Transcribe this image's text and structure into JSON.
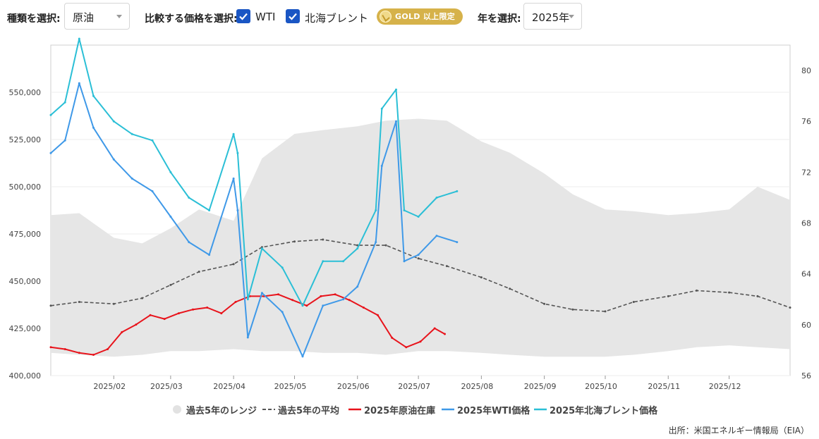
{
  "toolbar": {
    "type_label": "種類を選択:",
    "type_value": "原油",
    "compare_label": "比較する価格を選択:",
    "wti_label": "WTI",
    "wti_checked": true,
    "brent_label": "北海ブレント",
    "brent_checked": true,
    "gold_badge": "GOLD 以上限定",
    "gold_icon": "gold-coin-icon",
    "year_label": "年を選択:",
    "year_value": "2025年"
  },
  "chart_data": {
    "type": "line",
    "x_ticks": [
      "2025/02",
      "2025/03",
      "2025/04",
      "2025/05",
      "2025/06",
      "2025/07",
      "2025/08",
      "2025/09",
      "2025/10",
      "2025/11",
      "2025/12"
    ],
    "x_range": [
      "2025-01-01",
      "2025-12-31"
    ],
    "y_left": {
      "ticks": [
        400000,
        425000,
        450000,
        475000,
        500000,
        525000,
        550000
      ],
      "tick_labels": [
        "400,000",
        "425,000",
        "450,000",
        "475,000",
        "500,000",
        "525,000",
        "550,000"
      ],
      "range": [
        400000,
        575000
      ]
    },
    "y_right": {
      "ticks": [
        56,
        60,
        64,
        68,
        72,
        76,
        80
      ],
      "tick_labels": [
        "56",
        "60",
        "64",
        "68",
        "72",
        "76",
        "80"
      ],
      "range": [
        56,
        82
      ]
    },
    "gridlines": true,
    "legend_position": "bottom",
    "legend": [
      {
        "name": "過去5年のレンジ",
        "color": "#e2e2e2",
        "style": "dot"
      },
      {
        "name": "過去5年の平均",
        "color": "#555555",
        "style": "dashed"
      },
      {
        "name": "2025年原油在庫",
        "color": "#e8131b",
        "style": "line"
      },
      {
        "name": "2025年WTI価格",
        "color": "#3f99e8",
        "style": "line"
      },
      {
        "name": "2025年北海ブレント価格",
        "color": "#2bbfd6",
        "style": "line"
      }
    ],
    "range_band": {
      "name": "過去5年のレンジ",
      "axis": "left",
      "x": [
        "2025-01-01",
        "2025-01-15",
        "2025-02-01",
        "2025-02-15",
        "2025-03-01",
        "2025-03-15",
        "2025-04-01",
        "2025-04-15",
        "2025-05-01",
        "2025-05-15",
        "2025-06-01",
        "2025-06-15",
        "2025-07-01",
        "2025-07-15",
        "2025-08-01",
        "2025-08-15",
        "2025-09-01",
        "2025-09-15",
        "2025-10-01",
        "2025-10-15",
        "2025-11-01",
        "2025-11-15",
        "2025-12-01",
        "2025-12-15",
        "2025-12-31"
      ],
      "low": [
        412000,
        411000,
        410000,
        411000,
        413000,
        413000,
        414000,
        413000,
        413000,
        412000,
        412000,
        411000,
        413000,
        413000,
        412000,
        411000,
        410000,
        410000,
        410000,
        411000,
        413000,
        415000,
        416000,
        415000,
        414000
      ],
      "high": [
        485000,
        486000,
        473000,
        470000,
        478000,
        488000,
        482000,
        515000,
        528000,
        530000,
        532000,
        535000,
        536000,
        535000,
        524000,
        518000,
        507000,
        496000,
        488000,
        487000,
        485000,
        486000,
        488000,
        500000,
        493000
      ]
    },
    "series": [
      {
        "name": "過去5年の平均",
        "axis": "left",
        "color": "#555555",
        "dash": true,
        "x": [
          "2025-01-01",
          "2025-01-15",
          "2025-02-01",
          "2025-02-15",
          "2025-03-01",
          "2025-03-15",
          "2025-04-01",
          "2025-04-15",
          "2025-05-01",
          "2025-05-15",
          "2025-06-01",
          "2025-06-15",
          "2025-07-01",
          "2025-07-15",
          "2025-08-01",
          "2025-08-15",
          "2025-09-01",
          "2025-09-15",
          "2025-10-01",
          "2025-10-15",
          "2025-11-01",
          "2025-11-15",
          "2025-12-01",
          "2025-12-15",
          "2025-12-31"
        ],
        "values": [
          437000,
          439000,
          438000,
          441000,
          448000,
          455000,
          459000,
          468000,
          471000,
          472000,
          469000,
          469000,
          462000,
          458000,
          452000,
          446000,
          438000,
          435000,
          434000,
          439000,
          442000,
          445000,
          444000,
          442000,
          436000
        ]
      },
      {
        "name": "2025年原油在庫",
        "axis": "left",
        "color": "#e8131b",
        "dash": false,
        "x": [
          "2025-01-01",
          "2025-01-08",
          "2025-01-15",
          "2025-01-22",
          "2025-01-29",
          "2025-02-05",
          "2025-02-12",
          "2025-02-19",
          "2025-02-26",
          "2025-03-05",
          "2025-03-12",
          "2025-03-19",
          "2025-03-26",
          "2025-04-02",
          "2025-04-09",
          "2025-04-16",
          "2025-04-23",
          "2025-04-30",
          "2025-05-07",
          "2025-05-14",
          "2025-05-21",
          "2025-05-28",
          "2025-06-04",
          "2025-06-11",
          "2025-06-18",
          "2025-06-25",
          "2025-07-02",
          "2025-07-09",
          "2025-07-14"
        ],
        "values": [
          415000,
          414000,
          412000,
          411000,
          414000,
          423000,
          427000,
          432000,
          430000,
          433000,
          435000,
          436000,
          433000,
          439000,
          442000,
          442000,
          443000,
          440000,
          437000,
          442000,
          443000,
          440000,
          436000,
          432000,
          420000,
          415000,
          418000,
          425000,
          422000
        ]
      },
      {
        "name": "2025年WTI価格",
        "axis": "right",
        "color": "#3f99e8",
        "dash": false,
        "x": [
          "2025-01-01",
          "2025-01-08",
          "2025-01-15",
          "2025-01-22",
          "2025-02-01",
          "2025-02-10",
          "2025-02-20",
          "2025-03-01",
          "2025-03-10",
          "2025-03-20",
          "2025-04-01",
          "2025-04-03",
          "2025-04-08",
          "2025-04-15",
          "2025-04-25",
          "2025-05-05",
          "2025-05-15",
          "2025-05-25",
          "2025-06-01",
          "2025-06-10",
          "2025-06-13",
          "2025-06-20",
          "2025-06-24",
          "2025-07-01",
          "2025-07-10",
          "2025-07-20"
        ],
        "values": [
          73.5,
          74.5,
          79.0,
          75.5,
          73.0,
          71.5,
          70.5,
          68.5,
          66.5,
          65.5,
          71.5,
          69.0,
          59.0,
          62.5,
          61.0,
          57.5,
          61.5,
          62.0,
          63.0,
          66.5,
          72.5,
          76.0,
          65.0,
          65.5,
          67.0,
          66.5
        ]
      },
      {
        "name": "2025年北海ブレント価格",
        "axis": "right",
        "color": "#2bbfd6",
        "dash": false,
        "x": [
          "2025-01-01",
          "2025-01-08",
          "2025-01-15",
          "2025-01-22",
          "2025-02-01",
          "2025-02-10",
          "2025-02-20",
          "2025-03-01",
          "2025-03-10",
          "2025-03-20",
          "2025-04-01",
          "2025-04-03",
          "2025-04-08",
          "2025-04-15",
          "2025-04-25",
          "2025-05-05",
          "2025-05-15",
          "2025-05-25",
          "2025-06-01",
          "2025-06-10",
          "2025-06-13",
          "2025-06-20",
          "2025-06-24",
          "2025-07-01",
          "2025-07-10",
          "2025-07-20"
        ],
        "values": [
          76.5,
          77.5,
          82.5,
          78.0,
          76.0,
          75.0,
          74.5,
          72.0,
          70.0,
          69.0,
          75.0,
          73.5,
          62.0,
          66.0,
          64.5,
          61.5,
          65.0,
          65.0,
          66.0,
          69.0,
          77.0,
          78.5,
          69.0,
          68.5,
          70.0,
          70.5
        ]
      }
    ],
    "source": "出所：米国エネルギー情報局（EIA）"
  }
}
